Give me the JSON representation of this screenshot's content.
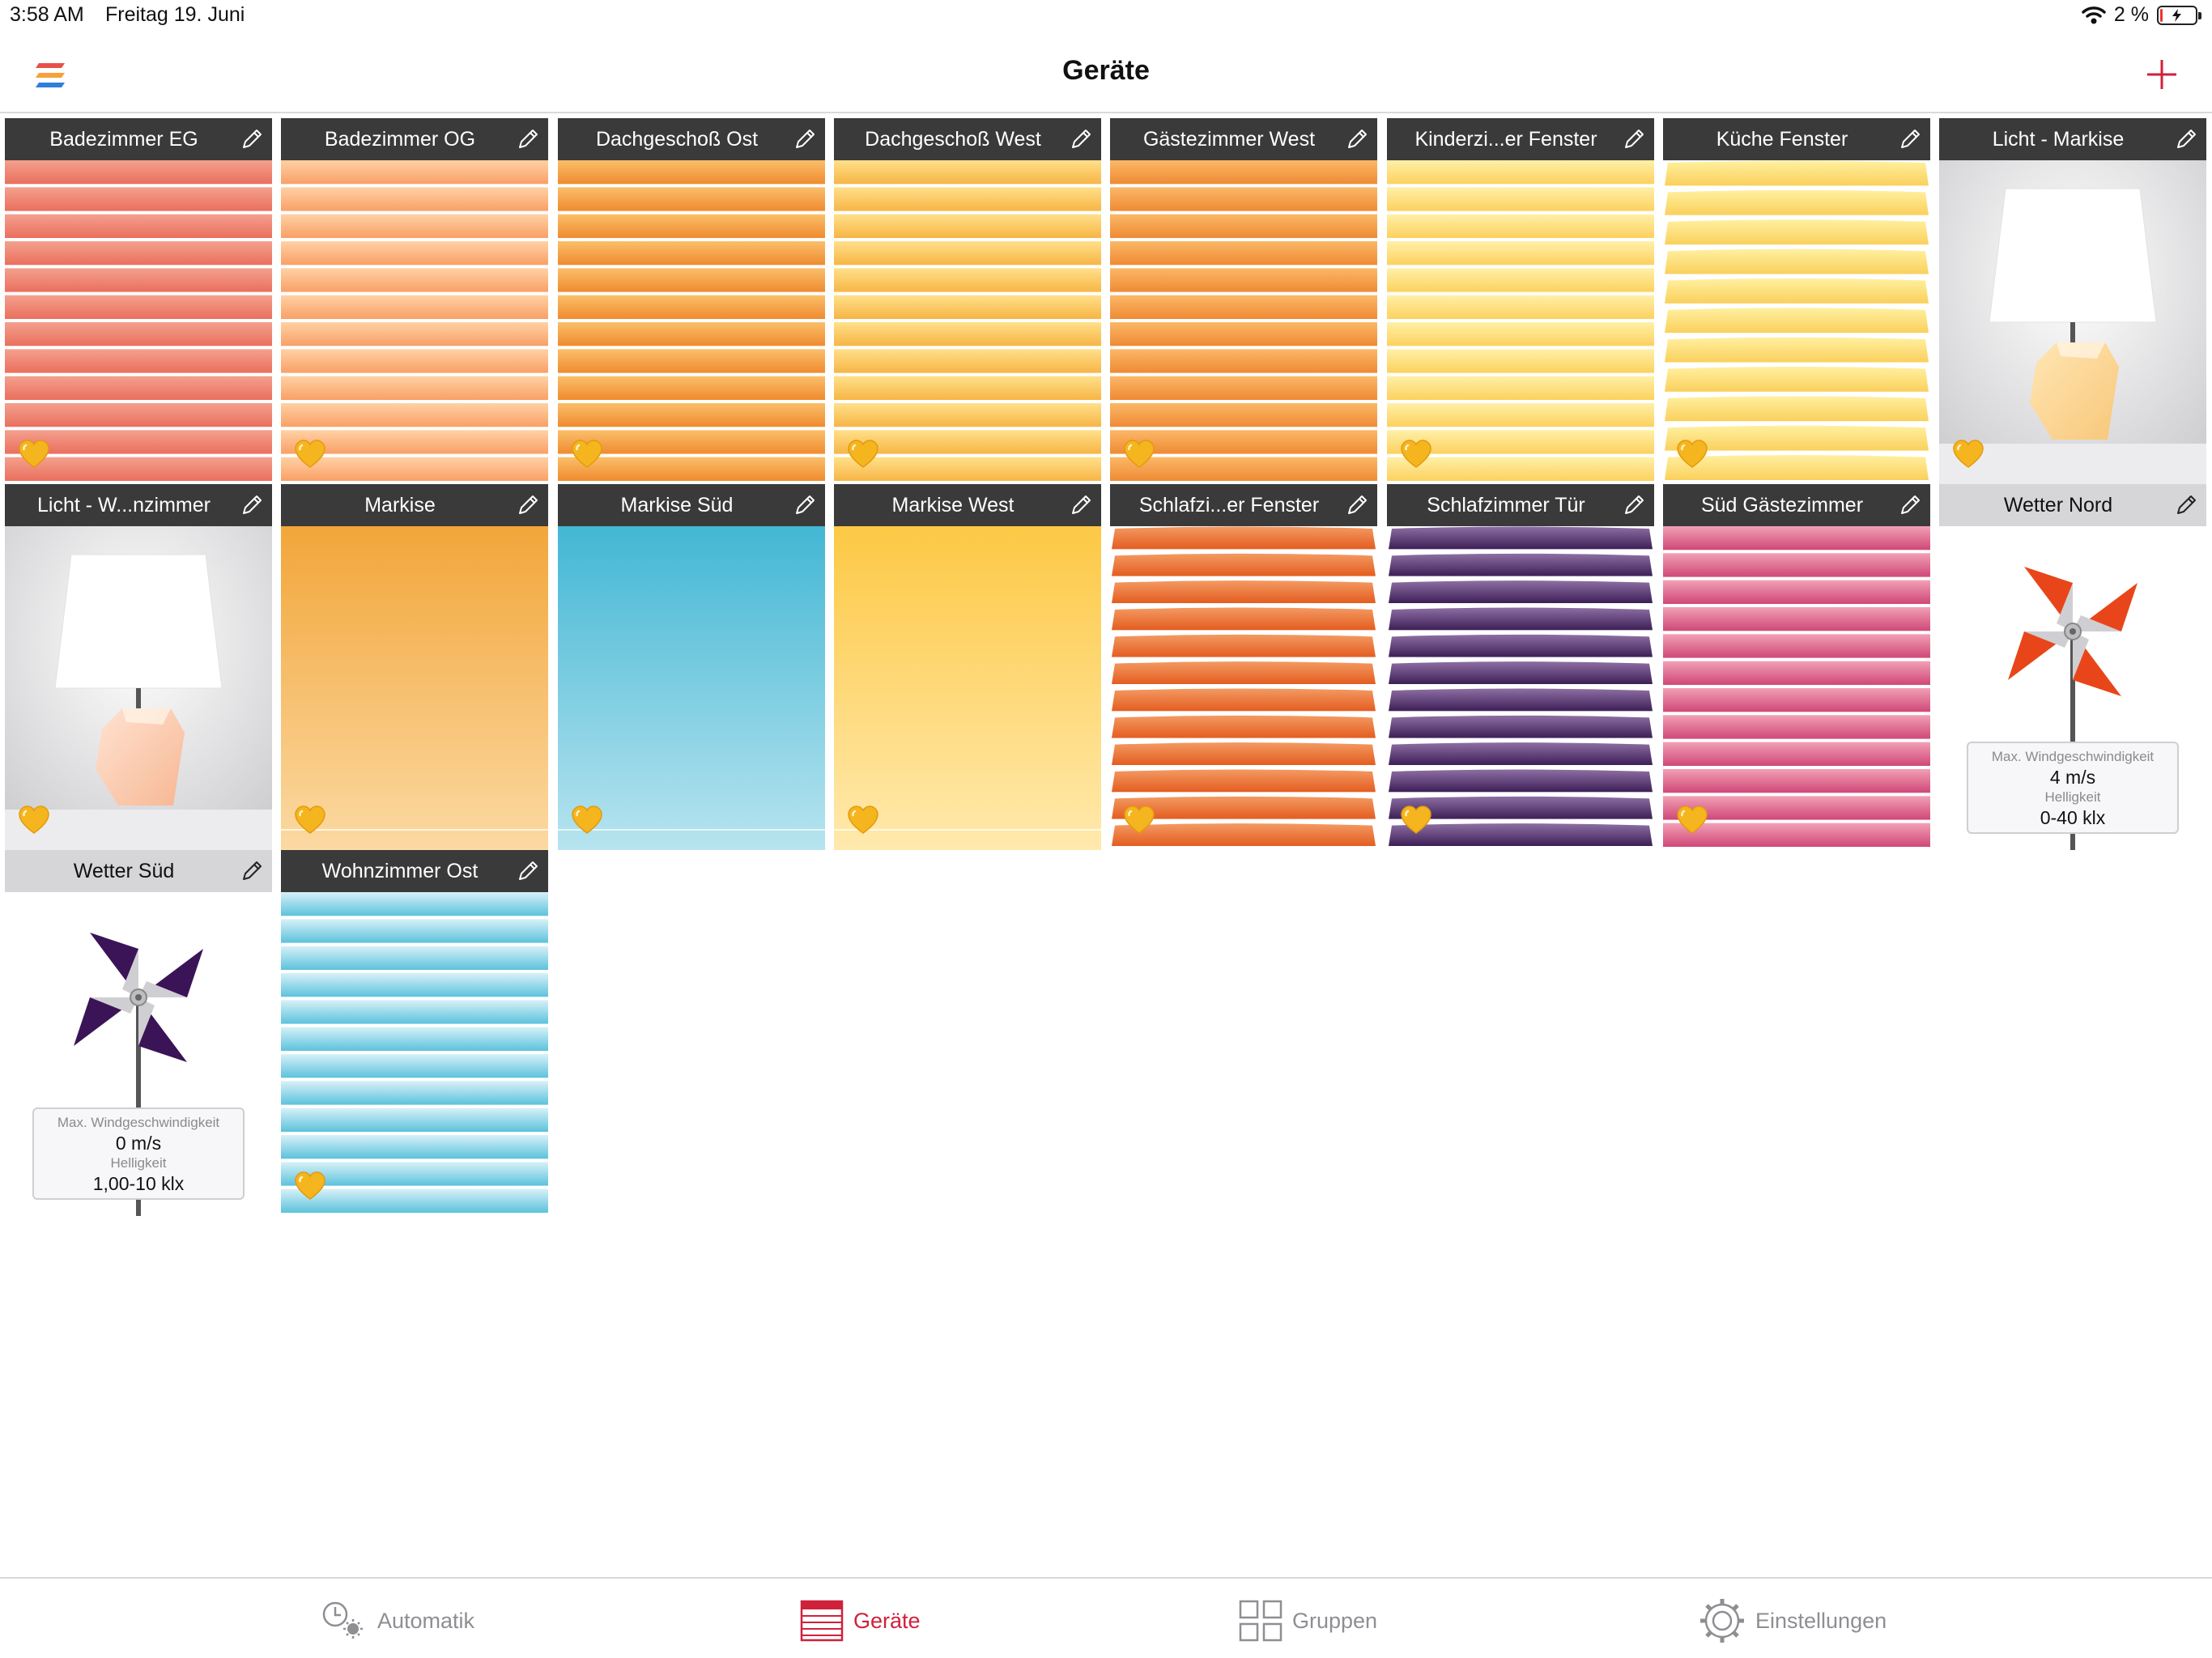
{
  "status_bar": {
    "time": "3:58 AM",
    "date": "Freitag 19. Juni",
    "battery": "2 %"
  },
  "nav": {
    "title": "Geräte",
    "logo_icon": "app-logo-icon",
    "add_icon": "plus-icon"
  },
  "devices": [
    {
      "label": "Badezimmer EG",
      "type": "blind",
      "colors": [
        "#f4a08e",
        "#ea6f5d"
      ],
      "slats": 12,
      "favorite": true
    },
    {
      "label": "Badezimmer OG",
      "type": "blind",
      "colors": [
        "#ffd1a4",
        "#f9a066"
      ],
      "slats": 12,
      "favorite": true
    },
    {
      "label": "Dachgeschoß Ost",
      "type": "blind",
      "colors": [
        "#fbbf6a",
        "#ef8b2f"
      ],
      "slats": 12,
      "favorite": true
    },
    {
      "label": "Dachgeschoß West",
      "type": "blind",
      "colors": [
        "#ffe08a",
        "#f7b545"
      ],
      "slats": 12,
      "favorite": true
    },
    {
      "label": "Gästezimmer West",
      "type": "blind",
      "colors": [
        "#fbb867",
        "#ef8a34"
      ],
      "slats": 12,
      "favorite": true
    },
    {
      "label": "Kinderzi...er Fenster",
      "type": "blind",
      "colors": [
        "#fff0a8",
        "#fcd15e"
      ],
      "slats": 12,
      "favorite": true
    },
    {
      "label": "Küche Fenster",
      "type": "shutter",
      "colors": [
        "#fff0a0",
        "#fad05c"
      ],
      "slats": 11,
      "favorite": true
    },
    {
      "label": "Licht - Markise",
      "type": "lamp",
      "colors": [
        "#ffe6b5",
        "#f8c779"
      ],
      "favorite": true
    },
    {
      "label": "Licht - W...nzimmer",
      "type": "lamp",
      "colors": [
        "#ffe3d2",
        "#f7b793"
      ],
      "favorite": true
    },
    {
      "label": "Markise",
      "type": "awning",
      "colors": [
        "#f2a63a",
        "#fbd9a2"
      ],
      "favorite": true
    },
    {
      "label": "Markise Süd",
      "type": "awning",
      "colors": [
        "#43b7d4",
        "#b7e4ef"
      ],
      "favorite": true
    },
    {
      "label": "Markise West",
      "type": "awning",
      "colors": [
        "#fdc945",
        "#ffe9ad"
      ],
      "favorite": true
    },
    {
      "label": "Schlafzi...er Fenster",
      "type": "shutter",
      "colors": [
        "#f39a62",
        "#e45d20"
      ],
      "slats": 12,
      "favorite": true
    },
    {
      "label": "Schlafzimmer Tür",
      "type": "shutter",
      "colors": [
        "#8e6fa4",
        "#3d1f57"
      ],
      "slats": 12,
      "favorite": true
    },
    {
      "label": "Süd Gästezimmer",
      "type": "blind",
      "colors": [
        "#f2a0b6",
        "#cf4777"
      ],
      "slats": 12,
      "favorite": true
    },
    {
      "label": "Wetter Nord",
      "type": "weather",
      "colors": [
        "#e8461a",
        "#c8c8cc"
      ],
      "wind_label": "Max. Windgeschwindigkeit",
      "wind_value": "4 m/s",
      "brightness_label": "Helligkeit",
      "brightness_value": "0-40 klx"
    },
    {
      "label": "Wetter Süd",
      "type": "weather",
      "colors": [
        "#3b1457",
        "#c8c8cc"
      ],
      "wind_label": "Max. Windgeschwindigkeit",
      "wind_value": "0 m/s",
      "brightness_label": "Helligkeit",
      "brightness_value": "1,00-10 klx"
    },
    {
      "label": "Wohnzimmer Ost",
      "type": "blind",
      "colors": [
        "#d7f1f8",
        "#5cc2dc"
      ],
      "slats": 12,
      "favorite": true
    }
  ],
  "tabs": [
    {
      "label": "Automatik",
      "icon": "clock-sun-icon",
      "active": false
    },
    {
      "label": "Geräte",
      "icon": "devices-icon",
      "active": true
    },
    {
      "label": "Gruppen",
      "icon": "groups-icon",
      "active": false
    },
    {
      "label": "Einstellungen",
      "icon": "gear-icon",
      "active": false
    }
  ],
  "accent_color": "#d0213b"
}
